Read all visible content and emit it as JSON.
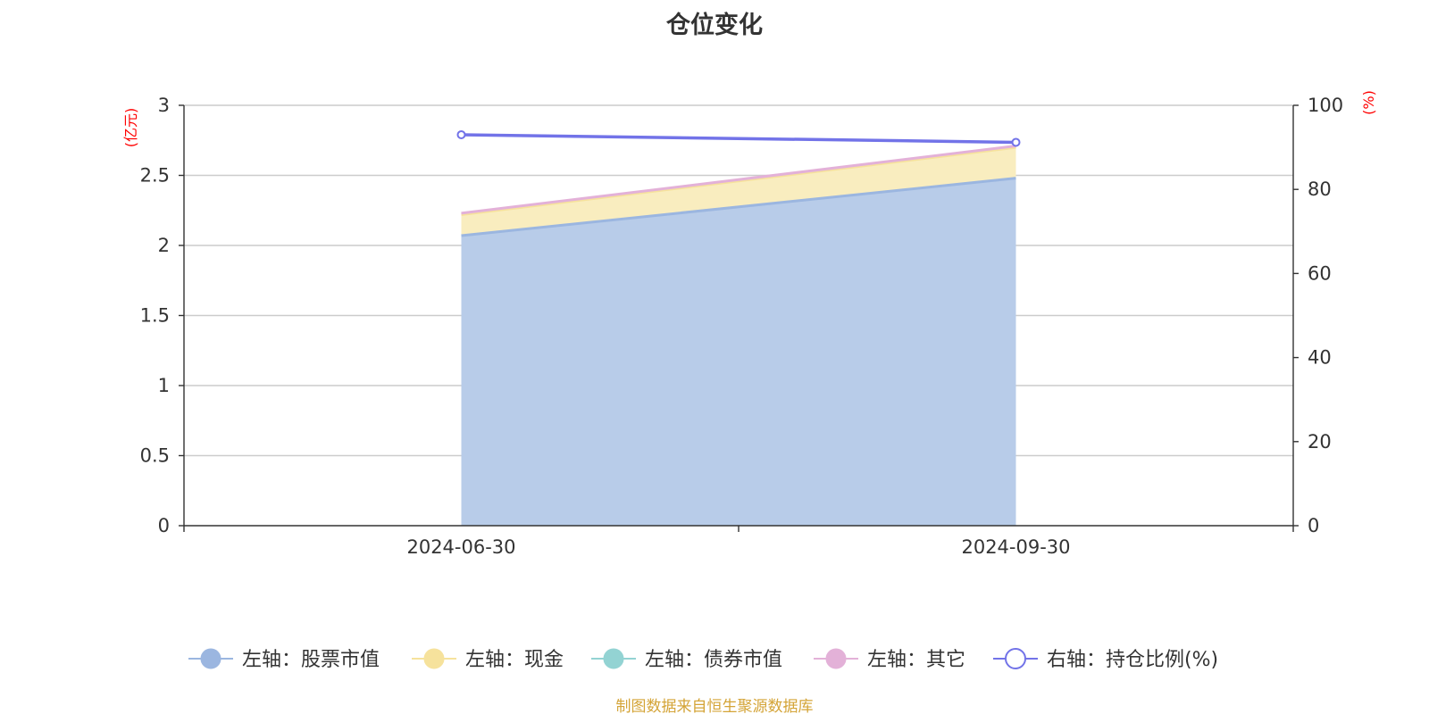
{
  "title": "仓位变化",
  "source_note": "制图数据来自恒生聚源数据库",
  "chart_data": {
    "type": "area",
    "categories": [
      "2024-06-30",
      "2024-09-30"
    ],
    "left_axis": {
      "unit": "(亿元)",
      "ylim": [
        0,
        3
      ],
      "ticks": [
        "0",
        "0.5",
        "1",
        "1.5",
        "2",
        "2.5",
        "3"
      ]
    },
    "right_axis": {
      "unit": "(%)",
      "ylim": [
        0,
        100
      ],
      "ticks": [
        "0",
        "20",
        "40",
        "60",
        "80",
        "100"
      ]
    },
    "series": [
      {
        "name": "左轴：股票市值",
        "axis": "left",
        "type": "area",
        "stacked": true,
        "color": "#9bb6e0",
        "fill": "#b8cce9",
        "values": [
          2.07,
          2.48
        ]
      },
      {
        "name": "左轴：现金",
        "axis": "left",
        "type": "area",
        "stacked": true,
        "color": "#f6e29c",
        "fill": "#f9edbf",
        "values": [
          0.15,
          0.22
        ]
      },
      {
        "name": "左轴：债券市值",
        "axis": "left",
        "type": "area",
        "stacked": true,
        "color": "#93d3d3",
        "fill": "#bfe6e6",
        "values": [
          0,
          0
        ]
      },
      {
        "name": "左轴：其它",
        "axis": "left",
        "type": "area",
        "stacked": true,
        "color": "#e3b1d8",
        "fill": "#efcfe8",
        "values": [
          0.01,
          0.01
        ]
      },
      {
        "name": "右轴：持仓比例(%)",
        "axis": "right",
        "type": "line",
        "color": "#7273e8",
        "values": [
          93.0,
          91.2
        ]
      }
    ],
    "grid": true,
    "legend_position": "bottom"
  }
}
